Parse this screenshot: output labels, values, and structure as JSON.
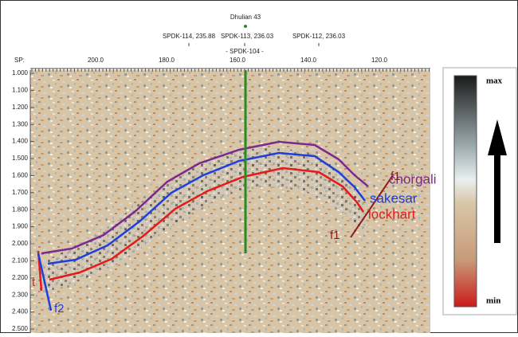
{
  "header": {
    "well": "Dhulian 43",
    "wells": [
      "SPDK-114, 235.88",
      "SPDK-113, 236.03",
      "SPDK-112, 236.03"
    ],
    "center_well": "- SPDK-104 -"
  },
  "axes": {
    "sp_label": "SP:",
    "sp_ticks": [
      "200.0",
      "180.0",
      "160.0",
      "140.0",
      "120.0"
    ],
    "time_ticks": [
      "1.000",
      "1.100",
      "1.200",
      "1.300",
      "1.400",
      "1.500",
      "1.600",
      "1.700",
      "1.800",
      "1.900",
      "2.000",
      "2.100",
      "2.200",
      "2.300",
      "2.400",
      "2.500"
    ]
  },
  "horizons": [
    "chorgali",
    "sakesar",
    "lockhart"
  ],
  "faults": [
    "f1",
    "f1",
    "f2",
    "t"
  ],
  "color_bar": {
    "max": "max",
    "min": "min"
  }
}
